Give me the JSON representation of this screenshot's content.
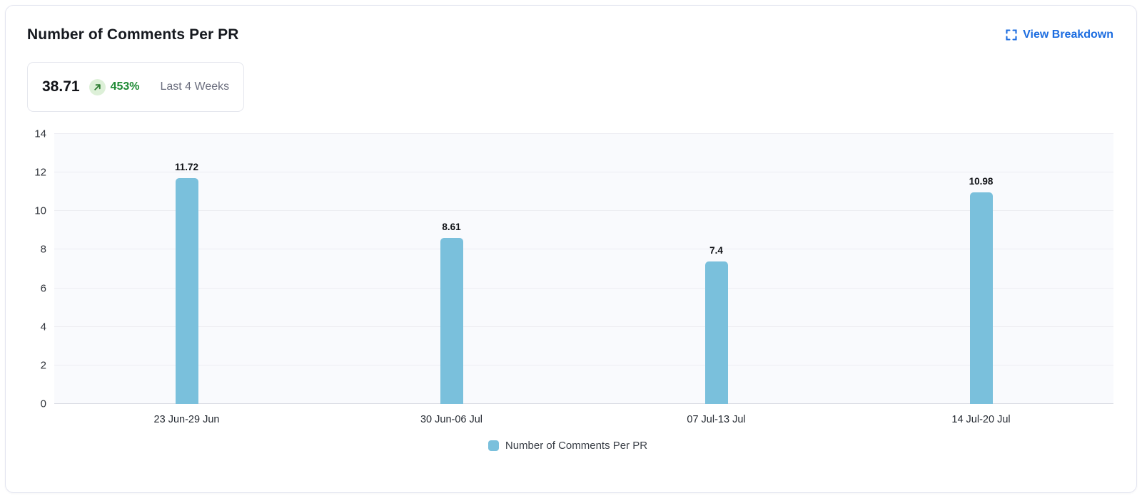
{
  "card": {
    "title": "Number of Comments Per PR",
    "view_breakdown": {
      "label": "View Breakdown",
      "icon": "expand-icon"
    },
    "stat": {
      "value": "38.71",
      "trend_percent": "453%",
      "trend_direction": "up",
      "trend_icon": "arrow-up-right-icon",
      "period": "Last 4 Weeks"
    }
  },
  "colors": {
    "accent_blue": "#1b6ce0",
    "bar": "#7ac0dc",
    "trend_green": "#1e8a34",
    "trend_bg": "#ddf0d8",
    "plot_bg": "#f9fafd",
    "gridline": "#ededf2",
    "zero_line": "#d9dce3",
    "card_border": "#e3e5f0"
  },
  "chart_data": {
    "type": "bar",
    "categories": [
      "23 Jun-29 Jun",
      "30 Jun-06 Jul",
      "07 Jul-13 Jul",
      "14 Jul-20 Jul"
    ],
    "values": [
      11.72,
      8.61,
      7.4,
      10.98
    ],
    "value_labels": [
      "11.72",
      "8.61",
      "7.4",
      "10.98"
    ],
    "title": "Number of Comments Per PR",
    "xlabel": "",
    "ylabel": "",
    "ylim": [
      0,
      14
    ],
    "yticks": [
      0,
      2,
      4,
      6,
      8,
      10,
      12,
      14
    ],
    "grid": true,
    "legend": {
      "position": "bottom",
      "entries": [
        "Number of Comments Per PR"
      ]
    },
    "bar_color": "#7ac0dc"
  }
}
